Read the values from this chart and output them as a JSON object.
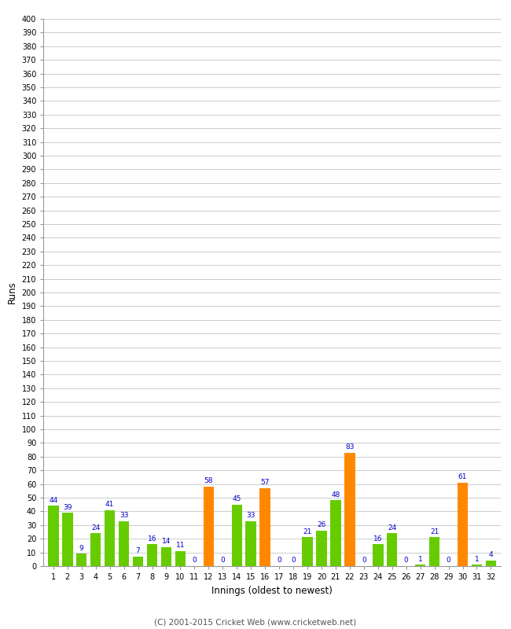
{
  "xlabel": "Innings (oldest to newest)",
  "ylabel": "Runs",
  "innings": [
    1,
    2,
    3,
    4,
    5,
    6,
    7,
    8,
    9,
    10,
    11,
    12,
    13,
    14,
    15,
    16,
    17,
    18,
    19,
    20,
    21,
    22,
    23,
    24,
    25,
    26,
    27,
    28,
    29,
    30,
    31,
    32
  ],
  "values": [
    44,
    39,
    9,
    24,
    41,
    33,
    7,
    16,
    14,
    11,
    0,
    58,
    0,
    45,
    33,
    57,
    0,
    0,
    21,
    26,
    48,
    83,
    0,
    16,
    24,
    0,
    1,
    21,
    0,
    61,
    1,
    4
  ],
  "colors": [
    "#66cc00",
    "#66cc00",
    "#66cc00",
    "#66cc00",
    "#66cc00",
    "#66cc00",
    "#66cc00",
    "#66cc00",
    "#66cc00",
    "#66cc00",
    "#66cc00",
    "#ff8800",
    "#66cc00",
    "#66cc00",
    "#66cc00",
    "#ff8800",
    "#66cc00",
    "#66cc00",
    "#66cc00",
    "#66cc00",
    "#66cc00",
    "#ff8800",
    "#66cc00",
    "#66cc00",
    "#66cc00",
    "#66cc00",
    "#66cc00",
    "#66cc00",
    "#66cc00",
    "#ff8800",
    "#66cc00",
    "#66cc00"
  ],
  "label_color": "#0000cc",
  "label_fontsize": 6.5,
  "ylim": [
    0,
    400
  ],
  "ytick_step": 10,
  "bg_color": "#ffffff",
  "grid_color": "#cccccc",
  "footer": "(C) 2001-2015 Cricket Web (www.cricketweb.net)",
  "bar_width": 0.75
}
